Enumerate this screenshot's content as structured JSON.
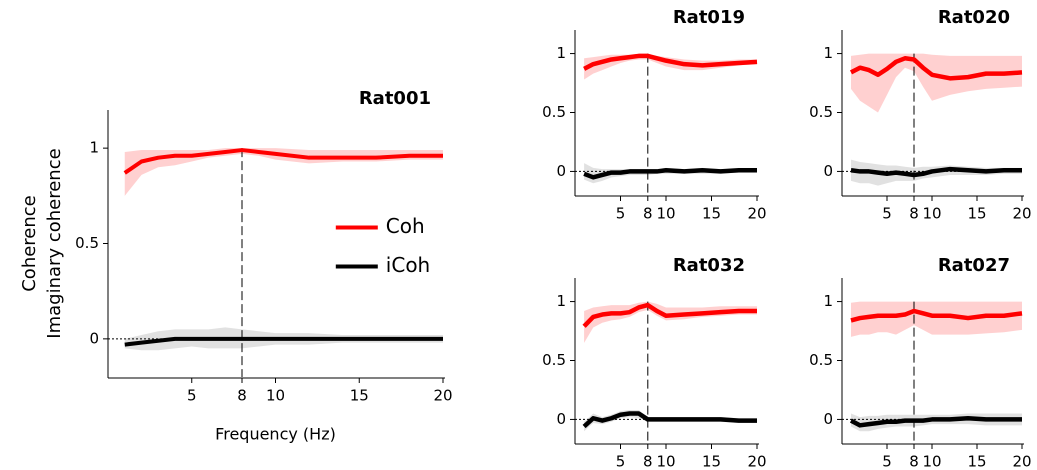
{
  "chart_data": [
    {
      "type": "line",
      "title": "Rat001",
      "xlabel": "Frequency (Hz)",
      "ylabel": [
        "Coherence",
        "Imaginary coherence"
      ],
      "legend": "right",
      "x": [
        1,
        2,
        3,
        4,
        5,
        6,
        7,
        8,
        9,
        10,
        12,
        14,
        16,
        18,
        20
      ],
      "xlim": [
        0,
        20
      ],
      "xticks": [
        5,
        8,
        10,
        15,
        20
      ],
      "ylim": [
        -0.2,
        1.2
      ],
      "yticks": [
        0,
        0.5,
        1
      ],
      "vline": 8,
      "hline": 0,
      "series": [
        {
          "name": "Coh",
          "color": "#ff0000",
          "band_color": "#ffc8c8",
          "values": [
            0.87,
            0.93,
            0.95,
            0.96,
            0.96,
            0.97,
            0.98,
            0.99,
            0.98,
            0.97,
            0.95,
            0.95,
            0.95,
            0.96,
            0.96
          ],
          "lower": [
            0.75,
            0.86,
            0.9,
            0.91,
            0.93,
            0.95,
            0.96,
            0.97,
            0.96,
            0.94,
            0.92,
            0.93,
            0.93,
            0.94,
            0.94
          ],
          "upper": [
            0.98,
            0.99,
            0.99,
            0.99,
            0.99,
            0.99,
            1.0,
            1.0,
            1.0,
            1.0,
            0.99,
            0.99,
            0.99,
            0.99,
            0.99
          ]
        },
        {
          "name": "iCoh",
          "color": "#000000",
          "band_color": "#dcdcdc",
          "values": [
            -0.03,
            -0.02,
            -0.01,
            0,
            0,
            0,
            0,
            0,
            0,
            0,
            0,
            0,
            0,
            0,
            0
          ],
          "lower": [
            -0.05,
            -0.06,
            -0.06,
            -0.05,
            -0.04,
            -0.05,
            -0.05,
            -0.05,
            -0.04,
            -0.03,
            -0.03,
            -0.02,
            -0.02,
            -0.02,
            -0.02
          ],
          "upper": [
            0,
            0.02,
            0.04,
            0.05,
            0.05,
            0.05,
            0.06,
            0.05,
            0.04,
            0.03,
            0.03,
            0.02,
            0.02,
            0.02,
            0.02
          ]
        }
      ]
    },
    {
      "type": "line",
      "title": "Rat019",
      "x": [
        1,
        2,
        3,
        4,
        5,
        6,
        7,
        8,
        9,
        10,
        12,
        14,
        16,
        18,
        20
      ],
      "xlim": [
        0,
        20
      ],
      "xticks": [
        5,
        8,
        10,
        15,
        20
      ],
      "ylim": [
        -0.2,
        1.2
      ],
      "yticks": [
        0,
        0.5,
        1
      ],
      "vline": 8,
      "hline": 0,
      "series": [
        {
          "name": "Coh",
          "color": "#ff0000",
          "band_color": "#ffc8c8",
          "values": [
            0.87,
            0.91,
            0.93,
            0.95,
            0.96,
            0.97,
            0.98,
            0.98,
            0.96,
            0.94,
            0.91,
            0.9,
            0.91,
            0.92,
            0.93
          ],
          "lower": [
            0.78,
            0.83,
            0.86,
            0.89,
            0.92,
            0.94,
            0.95,
            0.95,
            0.92,
            0.89,
            0.86,
            0.86,
            0.88,
            0.9,
            0.91
          ],
          "upper": [
            0.96,
            0.97,
            0.98,
            0.99,
            0.99,
            0.99,
            0.99,
            0.99,
            0.98,
            0.97,
            0.95,
            0.94,
            0.94,
            0.95,
            0.95
          ]
        },
        {
          "name": "iCoh",
          "color": "#000000",
          "band_color": "#dcdcdc",
          "values": [
            -0.02,
            -0.05,
            -0.03,
            -0.01,
            -0.01,
            0,
            0,
            0,
            0,
            0.01,
            0,
            0.01,
            0,
            0.01,
            0.01
          ],
          "lower": [
            -0.07,
            -0.1,
            -0.08,
            -0.05,
            -0.04,
            -0.03,
            -0.03,
            -0.03,
            -0.02,
            -0.02,
            -0.02,
            -0.02,
            -0.02,
            -0.01,
            -0.01
          ],
          "upper": [
            0.07,
            0.03,
            0.02,
            0.02,
            0.02,
            0.02,
            0.02,
            0.02,
            0.02,
            0.03,
            0.02,
            0.03,
            0.02,
            0.02,
            0.02
          ]
        }
      ]
    },
    {
      "type": "line",
      "title": "Rat020",
      "x": [
        1,
        2,
        3,
        4,
        5,
        6,
        7,
        8,
        9,
        10,
        12,
        14,
        16,
        18,
        20
      ],
      "xlim": [
        0,
        20
      ],
      "xticks": [
        5,
        8,
        10,
        15,
        20
      ],
      "ylim": [
        -0.2,
        1.2
      ],
      "yticks": [
        0,
        0.5,
        1
      ],
      "vline": 8,
      "hline": 0,
      "series": [
        {
          "name": "Coh",
          "color": "#ff0000",
          "band_color": "#ffc8c8",
          "values": [
            0.84,
            0.88,
            0.86,
            0.82,
            0.87,
            0.93,
            0.96,
            0.95,
            0.88,
            0.82,
            0.79,
            0.8,
            0.83,
            0.83,
            0.84
          ],
          "lower": [
            0.7,
            0.6,
            0.55,
            0.5,
            0.65,
            0.8,
            0.88,
            0.85,
            0.72,
            0.6,
            0.65,
            0.68,
            0.7,
            0.71,
            0.72
          ],
          "upper": [
            0.98,
            0.99,
            1,
            1,
            1,
            1,
            1,
            1,
            1,
            0.99,
            0.98,
            0.98,
            0.98,
            0.98,
            0.98
          ]
        },
        {
          "name": "iCoh",
          "color": "#000000",
          "band_color": "#dcdcdc",
          "values": [
            0.01,
            0,
            0,
            -0.01,
            -0.02,
            -0.01,
            -0.02,
            -0.03,
            -0.02,
            0,
            0.02,
            0.01,
            0,
            0.01,
            0.01
          ],
          "lower": [
            -0.08,
            -0.1,
            -0.1,
            -0.12,
            -0.1,
            -0.08,
            -0.08,
            -0.08,
            -0.06,
            -0.05,
            -0.03,
            -0.03,
            -0.03,
            -0.02,
            -0.02
          ],
          "upper": [
            0.1,
            0.08,
            0.07,
            0.06,
            0.05,
            0.05,
            0.04,
            0.03,
            0.04,
            0.04,
            0.05,
            0.04,
            0.03,
            0.03,
            0.03
          ]
        }
      ]
    },
    {
      "type": "line",
      "title": "Rat032",
      "x": [
        1,
        2,
        3,
        4,
        5,
        6,
        7,
        8,
        9,
        10,
        12,
        14,
        16,
        18,
        20
      ],
      "xlim": [
        0,
        20
      ],
      "xticks": [
        5,
        8,
        10,
        15,
        20
      ],
      "ylim": [
        -0.2,
        1.2
      ],
      "yticks": [
        0,
        0.5,
        1
      ],
      "vline": 8,
      "hline": 0,
      "series": [
        {
          "name": "Coh",
          "color": "#ff0000",
          "band_color": "#ffc8c8",
          "values": [
            0.79,
            0.87,
            0.89,
            0.9,
            0.9,
            0.91,
            0.95,
            0.97,
            0.92,
            0.88,
            0.89,
            0.9,
            0.91,
            0.92,
            0.92
          ],
          "lower": [
            0.65,
            0.78,
            0.82,
            0.84,
            0.85,
            0.87,
            0.91,
            0.93,
            0.88,
            0.84,
            0.85,
            0.87,
            0.88,
            0.89,
            0.89
          ],
          "upper": [
            0.92,
            0.95,
            0.96,
            0.97,
            0.97,
            0.97,
            0.99,
            1,
            0.98,
            0.95,
            0.95,
            0.95,
            0.96,
            0.96,
            0.96
          ]
        },
        {
          "name": "iCoh",
          "color": "#000000",
          "band_color": "#dcdcdc",
          "values": [
            -0.06,
            0.01,
            -0.01,
            0.01,
            0.04,
            0.05,
            0.05,
            0,
            0,
            0,
            0,
            0,
            0,
            -0.01,
            -0.01
          ],
          "lower": [
            -0.1,
            -0.03,
            -0.04,
            -0.02,
            0.01,
            0.02,
            0.01,
            -0.02,
            -0.02,
            -0.02,
            -0.02,
            -0.02,
            -0.02,
            -0.03,
            -0.03
          ],
          "upper": [
            -0.02,
            0.05,
            0.02,
            0.04,
            0.07,
            0.08,
            0.08,
            0.02,
            0.02,
            0.02,
            0.02,
            0.02,
            0.02,
            0.01,
            0.01
          ]
        }
      ]
    },
    {
      "type": "line",
      "title": "Rat027",
      "x": [
        1,
        2,
        3,
        4,
        5,
        6,
        7,
        8,
        9,
        10,
        12,
        14,
        16,
        18,
        20
      ],
      "xlim": [
        0,
        20
      ],
      "xticks": [
        5,
        8,
        10,
        15,
        20
      ],
      "ylim": [
        -0.2,
        1.2
      ],
      "yticks": [
        0,
        0.5,
        1
      ],
      "vline": 8,
      "hline": 0,
      "series": [
        {
          "name": "Coh",
          "color": "#ff0000",
          "band_color": "#ffc8c8",
          "values": [
            0.84,
            0.86,
            0.87,
            0.88,
            0.88,
            0.88,
            0.89,
            0.92,
            0.9,
            0.88,
            0.88,
            0.86,
            0.88,
            0.88,
            0.9
          ],
          "lower": [
            0.7,
            0.72,
            0.72,
            0.74,
            0.74,
            0.72,
            0.76,
            0.8,
            0.76,
            0.72,
            0.72,
            0.72,
            0.73,
            0.74,
            0.76
          ],
          "upper": [
            0.99,
            1,
            1,
            1,
            1,
            1,
            1,
            1,
            1,
            1,
            1,
            1,
            1,
            1,
            1
          ]
        },
        {
          "name": "iCoh",
          "color": "#000000",
          "band_color": "#dcdcdc",
          "values": [
            -0.01,
            -0.05,
            -0.04,
            -0.03,
            -0.02,
            -0.02,
            -0.01,
            -0.01,
            -0.01,
            0,
            0,
            0.01,
            0,
            0,
            0
          ],
          "lower": [
            -0.06,
            -0.1,
            -0.1,
            -0.08,
            -0.07,
            -0.06,
            -0.06,
            -0.06,
            -0.05,
            -0.04,
            -0.04,
            -0.04,
            -0.05,
            -0.05,
            -0.05
          ],
          "upper": [
            0.05,
            0.02,
            0.03,
            0.03,
            0.04,
            0.04,
            0.04,
            0.04,
            0.04,
            0.04,
            0.04,
            0.05,
            0.05,
            0.05,
            0.05
          ]
        }
      ]
    }
  ]
}
